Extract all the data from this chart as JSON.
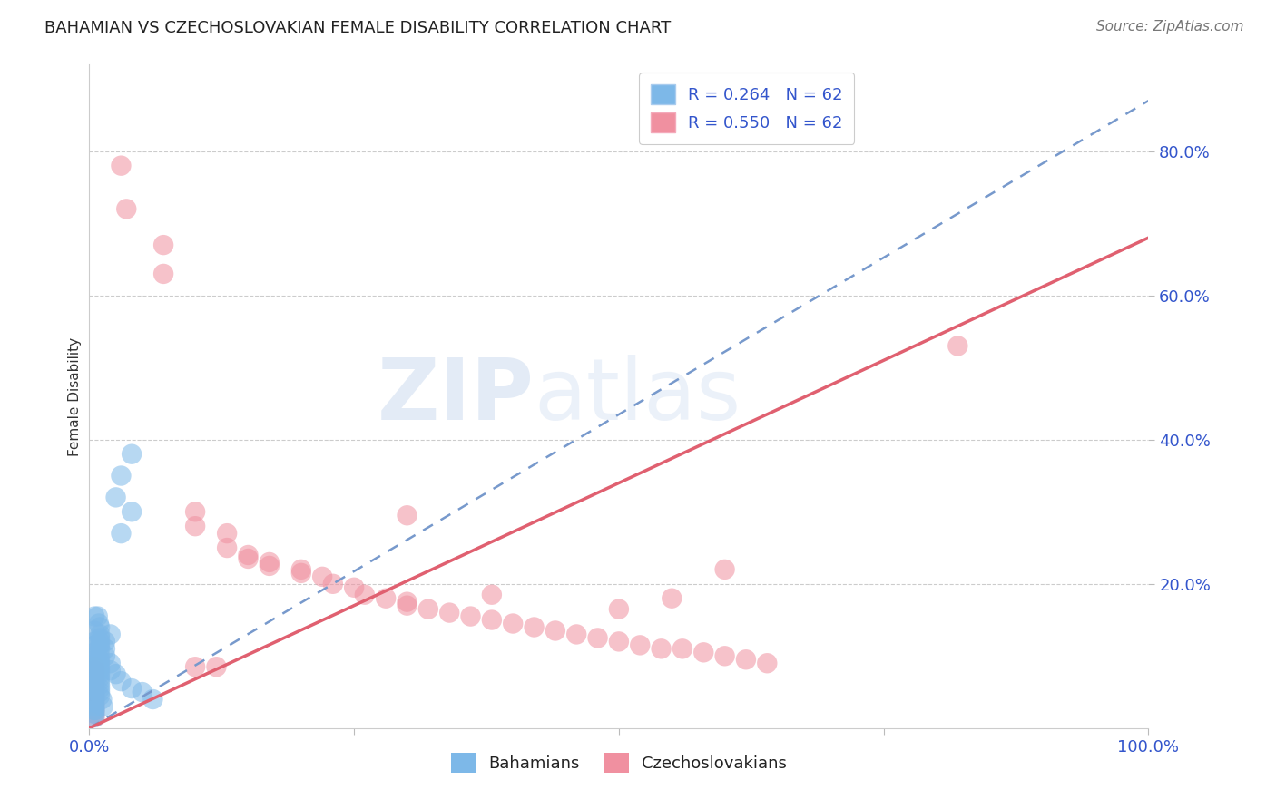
{
  "title": "BAHAMIAN VS CZECHOSLOVAKIAN FEMALE DISABILITY CORRELATION CHART",
  "source": "Source: ZipAtlas.com",
  "ylabel_text": "Female Disability",
  "legend_label1": "Bahamians",
  "legend_label2": "Czechoslovakians",
  "bahamian_color": "#7db8e8",
  "czechoslovakian_color": "#f090a0",
  "line_blue_color": "#7799cc",
  "line_pink_color": "#e06070",
  "watermark_zip": "ZIP",
  "watermark_atlas": "atlas",
  "bahamian_R": 0.264,
  "czechoslovakian_R": 0.55,
  "N": 62,
  "xlim": [
    0.0,
    1.0
  ],
  "ylim": [
    0.0,
    0.92
  ],
  "xticks": [
    0.0,
    0.25,
    0.5,
    0.75,
    1.0
  ],
  "yticks": [
    0.2,
    0.4,
    0.6,
    0.8
  ],
  "line_blue_x0": 0.0,
  "line_blue_y0": 0.0,
  "line_blue_x1": 1.0,
  "line_blue_y1": 0.87,
  "line_pink_x0": 0.0,
  "line_pink_y0": 0.0,
  "line_pink_x1": 1.0,
  "line_pink_y1": 0.68,
  "bahamian_scatter": [
    [
      0.005,
      0.155
    ],
    [
      0.005,
      0.135
    ],
    [
      0.005,
      0.12
    ],
    [
      0.005,
      0.115
    ],
    [
      0.005,
      0.105
    ],
    [
      0.005,
      0.1
    ],
    [
      0.005,
      0.095
    ],
    [
      0.005,
      0.09
    ],
    [
      0.005,
      0.085
    ],
    [
      0.005,
      0.08
    ],
    [
      0.005,
      0.075
    ],
    [
      0.005,
      0.07
    ],
    [
      0.005,
      0.065
    ],
    [
      0.005,
      0.06
    ],
    [
      0.005,
      0.055
    ],
    [
      0.005,
      0.05
    ],
    [
      0.005,
      0.045
    ],
    [
      0.005,
      0.04
    ],
    [
      0.005,
      0.035
    ],
    [
      0.005,
      0.03
    ],
    [
      0.005,
      0.025
    ],
    [
      0.005,
      0.02
    ],
    [
      0.01,
      0.14
    ],
    [
      0.01,
      0.13
    ],
    [
      0.01,
      0.125
    ],
    [
      0.01,
      0.12
    ],
    [
      0.01,
      0.115
    ],
    [
      0.01,
      0.11
    ],
    [
      0.01,
      0.1
    ],
    [
      0.01,
      0.095
    ],
    [
      0.01,
      0.09
    ],
    [
      0.01,
      0.085
    ],
    [
      0.01,
      0.08
    ],
    [
      0.01,
      0.075
    ],
    [
      0.01,
      0.07
    ],
    [
      0.01,
      0.065
    ],
    [
      0.01,
      0.06
    ],
    [
      0.01,
      0.055
    ],
    [
      0.01,
      0.05
    ],
    [
      0.01,
      0.045
    ],
    [
      0.015,
      0.12
    ],
    [
      0.015,
      0.11
    ],
    [
      0.015,
      0.1
    ],
    [
      0.02,
      0.13
    ],
    [
      0.02,
      0.09
    ],
    [
      0.02,
      0.08
    ],
    [
      0.025,
      0.075
    ],
    [
      0.025,
      0.32
    ],
    [
      0.03,
      0.065
    ],
    [
      0.04,
      0.055
    ],
    [
      0.05,
      0.05
    ],
    [
      0.06,
      0.04
    ],
    [
      0.008,
      0.155
    ],
    [
      0.009,
      0.145
    ],
    [
      0.012,
      0.04
    ],
    [
      0.013,
      0.03
    ],
    [
      0.03,
      0.27
    ],
    [
      0.04,
      0.3
    ],
    [
      0.005,
      0.025
    ],
    [
      0.005,
      0.015
    ],
    [
      0.03,
      0.35
    ],
    [
      0.04,
      0.38
    ]
  ],
  "czechoslovakian_scatter": [
    [
      0.03,
      0.78
    ],
    [
      0.035,
      0.72
    ],
    [
      0.07,
      0.67
    ],
    [
      0.07,
      0.63
    ],
    [
      0.1,
      0.3
    ],
    [
      0.1,
      0.28
    ],
    [
      0.13,
      0.27
    ],
    [
      0.13,
      0.25
    ],
    [
      0.15,
      0.24
    ],
    [
      0.15,
      0.235
    ],
    [
      0.17,
      0.23
    ],
    [
      0.17,
      0.225
    ],
    [
      0.2,
      0.22
    ],
    [
      0.2,
      0.215
    ],
    [
      0.22,
      0.21
    ],
    [
      0.23,
      0.2
    ],
    [
      0.25,
      0.195
    ],
    [
      0.26,
      0.185
    ],
    [
      0.28,
      0.18
    ],
    [
      0.3,
      0.175
    ],
    [
      0.3,
      0.17
    ],
    [
      0.32,
      0.165
    ],
    [
      0.34,
      0.16
    ],
    [
      0.36,
      0.155
    ],
    [
      0.38,
      0.15
    ],
    [
      0.4,
      0.145
    ],
    [
      0.42,
      0.14
    ],
    [
      0.44,
      0.135
    ],
    [
      0.46,
      0.13
    ],
    [
      0.48,
      0.125
    ],
    [
      0.5,
      0.12
    ],
    [
      0.52,
      0.115
    ],
    [
      0.54,
      0.11
    ],
    [
      0.56,
      0.11
    ],
    [
      0.58,
      0.105
    ],
    [
      0.6,
      0.1
    ],
    [
      0.62,
      0.095
    ],
    [
      0.64,
      0.09
    ],
    [
      0.1,
      0.085
    ],
    [
      0.12,
      0.085
    ],
    [
      0.005,
      0.085
    ],
    [
      0.005,
      0.08
    ],
    [
      0.005,
      0.075
    ],
    [
      0.005,
      0.07
    ],
    [
      0.005,
      0.065
    ],
    [
      0.005,
      0.06
    ],
    [
      0.005,
      0.055
    ],
    [
      0.005,
      0.05
    ],
    [
      0.005,
      0.045
    ],
    [
      0.005,
      0.04
    ],
    [
      0.005,
      0.035
    ],
    [
      0.005,
      0.03
    ],
    [
      0.005,
      0.025
    ],
    [
      0.82,
      0.53
    ],
    [
      0.3,
      0.295
    ],
    [
      0.38,
      0.185
    ],
    [
      0.5,
      0.165
    ],
    [
      0.55,
      0.18
    ],
    [
      0.005,
      0.045
    ],
    [
      0.6,
      0.22
    ],
    [
      0.005,
      0.02
    ],
    [
      0.005,
      0.015
    ]
  ]
}
